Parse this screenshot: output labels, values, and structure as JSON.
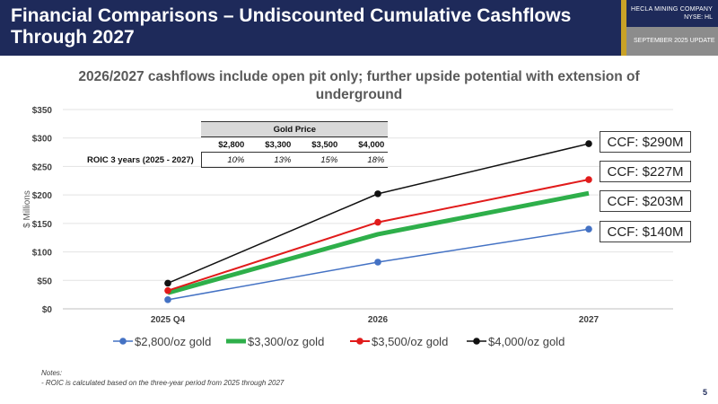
{
  "header": {
    "title": "Financial Comparisons – Undiscounted Cumulative Cashflows Through 2027",
    "company": "HECLA MINING COMPANY",
    "ticker": "NYSE: HL",
    "update": "SEPTEMBER 2025 UPDATE"
  },
  "subtitle": "2026/2027 cashflows include open pit only; further upside potential with extension of underground",
  "colors": {
    "navy": "#1e2a5a",
    "gold": "#c9a227",
    "gray": "#8c8c8c"
  },
  "chart_data": {
    "type": "line",
    "categories": [
      "2025 Q4",
      "2026",
      "2027"
    ],
    "ylabel": "$ Millions",
    "ylim": [
      0,
      350
    ],
    "yticks": [
      "$0",
      "$50",
      "$100",
      "$150",
      "$200",
      "$250",
      "$300",
      "$350"
    ],
    "grid": true,
    "legend_position": "bottom",
    "series": [
      {
        "name": "$2,800/oz gold",
        "values": [
          16,
          82,
          140
        ],
        "color": "#4472c4",
        "width": 1.5
      },
      {
        "name": "$3,300/oz gold",
        "values": [
          28,
          131,
          203
        ],
        "color": "#2eaf4a",
        "width": 5
      },
      {
        "name": "$3,500/oz gold",
        "values": [
          32,
          152,
          227
        ],
        "color": "#e11b1b",
        "width": 2
      },
      {
        "name": "$4,000/oz gold",
        "values": [
          45,
          202,
          290
        ],
        "color": "#111111",
        "width": 1.5
      }
    ]
  },
  "roic_table": {
    "header": "Gold Price",
    "prices": [
      "$2,800",
      "$3,300",
      "$3,500",
      "$4,000"
    ],
    "row_label": "ROIC 3 years (2025 - 2027)",
    "values": [
      "10%",
      "13%",
      "15%",
      "18%"
    ]
  },
  "ccf_labels": [
    "CCF: $290M",
    "CCF: $227M",
    "CCF: $203M",
    "CCF: $140M"
  ],
  "notes": {
    "heading": "Notes:",
    "items": [
      "-   ROIC is calculated based on the three-year period from 2025 through 2027"
    ]
  },
  "page_number": "5"
}
